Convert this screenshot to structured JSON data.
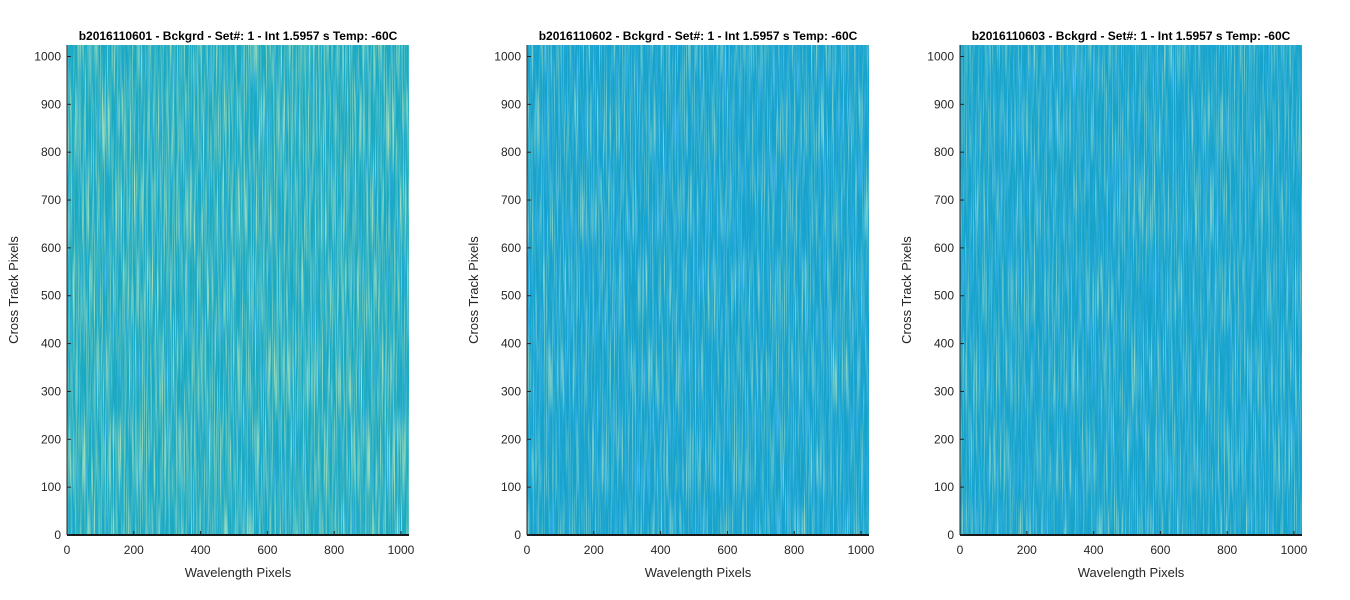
{
  "figure": {
    "background": "#ffffff"
  },
  "chart_data": [
    {
      "type": "heatmap",
      "title": "b2016110601 - Bckgrd - Set#: 1 - Int 1.5957 s Temp: -60C",
      "xlabel": "Wavelength Pixels",
      "ylabel": "Cross Track Pixels",
      "xlim": [
        0,
        1024
      ],
      "ylim": [
        0,
        1024
      ],
      "xticks": [
        0,
        200,
        400,
        600,
        800,
        1000
      ],
      "yticks": [
        0,
        100,
        200,
        300,
        400,
        500,
        600,
        700,
        800,
        900,
        1000
      ],
      "grid": false,
      "colormap": "parula",
      "base_color": "#1aa9c2",
      "highlight_color": "#6ec680",
      "noise_level": "slightly warmer (more green/yellow streaks)"
    },
    {
      "type": "heatmap",
      "title": "b2016110602 - Bckgrd - Set#: 1 - Int 1.5957 s Temp: -60C",
      "xlabel": "Wavelength Pixels",
      "ylabel": "Cross Track Pixels",
      "xlim": [
        0,
        1024
      ],
      "ylim": [
        0,
        1024
      ],
      "xticks": [
        0,
        200,
        400,
        600,
        800,
        1000
      ],
      "yticks": [
        0,
        100,
        200,
        300,
        400,
        500,
        600,
        700,
        800,
        900,
        1000
      ],
      "grid": false,
      "colormap": "parula",
      "base_color": "#15a2cc",
      "highlight_color": "#5cbf8e",
      "noise_level": "cooler (mostly blue)"
    },
    {
      "type": "heatmap",
      "title": "b2016110603 - Bckgrd - Set#: 1 - Int 1.5957 s Temp: -60C",
      "xlabel": "Wavelength Pixels",
      "ylabel": "Cross Track Pixels",
      "xlim": [
        0,
        1024
      ],
      "ylim": [
        0,
        1024
      ],
      "xticks": [
        0,
        200,
        400,
        600,
        800,
        1000
      ],
      "yticks": [
        0,
        100,
        200,
        300,
        400,
        500,
        600,
        700,
        800,
        900,
        1000
      ],
      "grid": false,
      "colormap": "parula",
      "base_color": "#16a3cb",
      "highlight_color": "#5cbf8e",
      "noise_level": "cooler (mostly blue)"
    }
  ]
}
